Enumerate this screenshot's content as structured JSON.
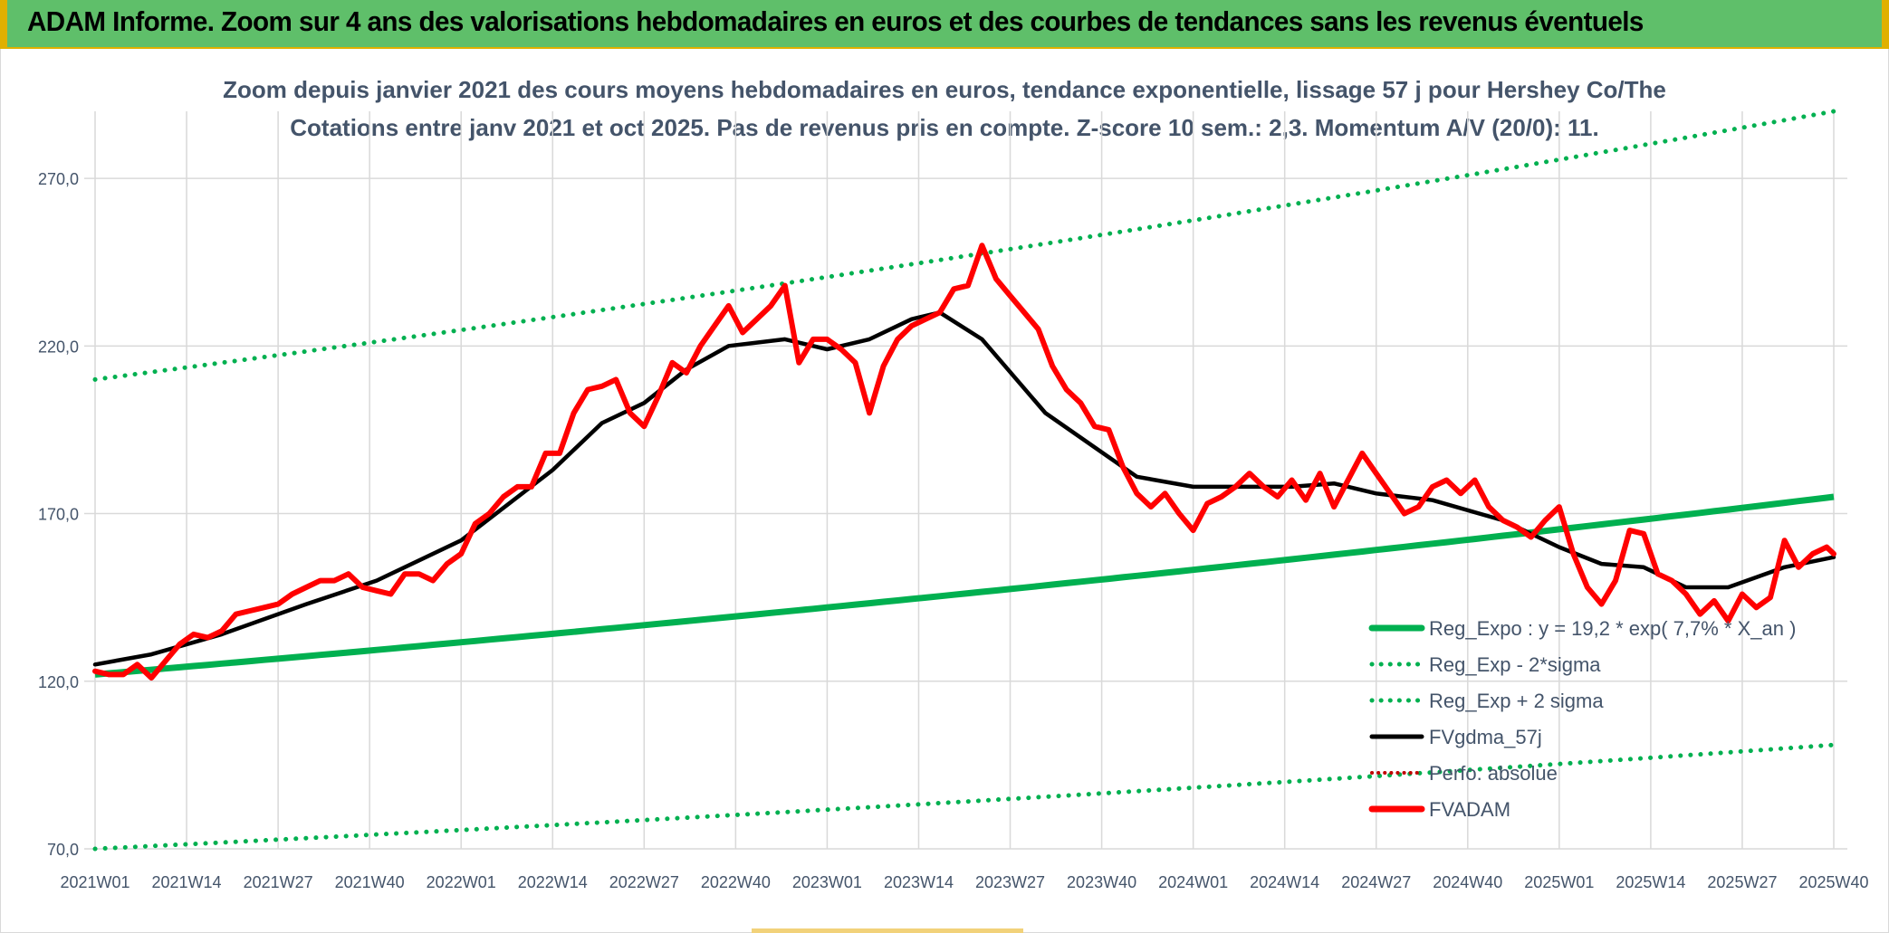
{
  "banner": {
    "title": "ADAM Informe. Zoom sur 4 ans des valorisations hebdomadaires en euros et des courbes de tendances sans les revenus éventuels"
  },
  "colors": {
    "banner_bg": "#5fbf6a",
    "banner_accent": "#e0b000",
    "trend_green": "#00b050",
    "smooth_black": "#000000",
    "price_red": "#ff0000",
    "perfo_red": "#c00000",
    "grid": "#d9d9d9",
    "text": "#44546a"
  },
  "chart_data": {
    "type": "line",
    "title": "Zoom depuis janvier 2021 des cours moyens hebdomadaires en euros, tendance exponentielle, lissage 57 j pour Hershey Co/The",
    "subtitle": "Cotations entre janv 2021 et oct 2025. Pas de revenus pris en compte. Z-score 10 sem.: 2,3. Momentum A/V (20/0): 11.",
    "xlabel": "",
    "ylabel": "",
    "ylim": [
      70,
      290
    ],
    "yticks": [
      70,
      120,
      170,
      220,
      270
    ],
    "ytick_labels": [
      "70,0",
      "120,0",
      "170,0",
      "220,0",
      "270,0"
    ],
    "x_count": 248,
    "xtick_index": [
      0,
      13,
      26,
      39,
      52,
      65,
      78,
      91,
      104,
      117,
      130,
      143,
      156,
      169,
      182,
      195,
      208,
      221,
      234,
      247
    ],
    "xtick_labels": [
      "2021W01",
      "2021W14",
      "2021W27",
      "2021W40",
      "2022W01",
      "2022W14",
      "2022W27",
      "2022W40",
      "2023W01",
      "2023W14",
      "2023W27",
      "2023W40",
      "2024W01",
      "2024W14",
      "2024W27",
      "2024W40",
      "2025W01",
      "2025W14",
      "2025W27",
      "2025W40"
    ],
    "grid": true,
    "legend_position": "bottom-right",
    "trend": {
      "name": "Reg_Expo : y = 19,2 * exp( 7,7% *  X_an )",
      "start": 122,
      "end": 175,
      "lower_start": 70,
      "lower_end": 101,
      "upper_start": 210,
      "upper_end": 290
    },
    "series": [
      {
        "name": "Reg_Expo : y = 19,2 * exp( 7,7% *  X_an )",
        "style": "solid-green"
      },
      {
        "name": "Reg_Exp - 2*sigma",
        "style": "dotted-green"
      },
      {
        "name": "Reg_Exp + 2 sigma",
        "style": "dotted-green"
      },
      {
        "name": "FVgdma_57j",
        "style": "solid-black",
        "points": [
          [
            0,
            125
          ],
          [
            8,
            128
          ],
          [
            18,
            134
          ],
          [
            30,
            143
          ],
          [
            40,
            150
          ],
          [
            52,
            162
          ],
          [
            65,
            183
          ],
          [
            72,
            197
          ],
          [
            78,
            203
          ],
          [
            84,
            213
          ],
          [
            90,
            220
          ],
          [
            98,
            222
          ],
          [
            104,
            219
          ],
          [
            110,
            222
          ],
          [
            116,
            228
          ],
          [
            120,
            230
          ],
          [
            126,
            222
          ],
          [
            135,
            200
          ],
          [
            148,
            181
          ],
          [
            156,
            178
          ],
          [
            170,
            178
          ],
          [
            176,
            179
          ],
          [
            182,
            176
          ],
          [
            190,
            174
          ],
          [
            200,
            168
          ],
          [
            208,
            160
          ],
          [
            214,
            155
          ],
          [
            220,
            154
          ],
          [
            226,
            148
          ],
          [
            232,
            148
          ],
          [
            240,
            154
          ],
          [
            247,
            157
          ]
        ]
      },
      {
        "name": "FVADAM",
        "style": "solid-red",
        "points": [
          [
            0,
            123
          ],
          [
            2,
            122
          ],
          [
            4,
            122
          ],
          [
            6,
            125
          ],
          [
            8,
            121
          ],
          [
            10,
            126
          ],
          [
            12,
            131
          ],
          [
            14,
            134
          ],
          [
            16,
            133
          ],
          [
            18,
            135
          ],
          [
            20,
            140
          ],
          [
            22,
            141
          ],
          [
            24,
            142
          ],
          [
            26,
            143
          ],
          [
            28,
            146
          ],
          [
            30,
            148
          ],
          [
            32,
            150
          ],
          [
            34,
            150
          ],
          [
            36,
            152
          ],
          [
            38,
            148
          ],
          [
            40,
            147
          ],
          [
            42,
            146
          ],
          [
            44,
            152
          ],
          [
            46,
            152
          ],
          [
            48,
            150
          ],
          [
            50,
            155
          ],
          [
            52,
            158
          ],
          [
            54,
            167
          ],
          [
            56,
            170
          ],
          [
            58,
            175
          ],
          [
            60,
            178
          ],
          [
            62,
            178
          ],
          [
            64,
            188
          ],
          [
            66,
            188
          ],
          [
            68,
            200
          ],
          [
            70,
            207
          ],
          [
            72,
            208
          ],
          [
            74,
            210
          ],
          [
            76,
            200
          ],
          [
            78,
            196
          ],
          [
            80,
            205
          ],
          [
            82,
            215
          ],
          [
            84,
            212
          ],
          [
            86,
            220
          ],
          [
            88,
            226
          ],
          [
            90,
            232
          ],
          [
            92,
            224
          ],
          [
            94,
            228
          ],
          [
            96,
            232
          ],
          [
            98,
            238
          ],
          [
            100,
            215
          ],
          [
            102,
            222
          ],
          [
            104,
            222
          ],
          [
            106,
            219
          ],
          [
            108,
            215
          ],
          [
            110,
            200
          ],
          [
            112,
            214
          ],
          [
            114,
            222
          ],
          [
            116,
            226
          ],
          [
            118,
            228
          ],
          [
            120,
            230
          ],
          [
            122,
            237
          ],
          [
            124,
            238
          ],
          [
            126,
            250
          ],
          [
            128,
            240
          ],
          [
            130,
            235
          ],
          [
            132,
            230
          ],
          [
            134,
            225
          ],
          [
            136,
            214
          ],
          [
            138,
            207
          ],
          [
            140,
            203
          ],
          [
            142,
            196
          ],
          [
            144,
            195
          ],
          [
            146,
            184
          ],
          [
            148,
            176
          ],
          [
            150,
            172
          ],
          [
            152,
            176
          ],
          [
            154,
            170
          ],
          [
            156,
            165
          ],
          [
            158,
            173
          ],
          [
            160,
            175
          ],
          [
            162,
            178
          ],
          [
            164,
            182
          ],
          [
            166,
            178
          ],
          [
            168,
            175
          ],
          [
            170,
            180
          ],
          [
            172,
            174
          ],
          [
            174,
            182
          ],
          [
            176,
            172
          ],
          [
            178,
            180
          ],
          [
            180,
            188
          ],
          [
            182,
            182
          ],
          [
            184,
            176
          ],
          [
            186,
            170
          ],
          [
            188,
            172
          ],
          [
            190,
            178
          ],
          [
            192,
            180
          ],
          [
            194,
            176
          ],
          [
            196,
            180
          ],
          [
            198,
            172
          ],
          [
            200,
            168
          ],
          [
            202,
            166
          ],
          [
            204,
            163
          ],
          [
            206,
            168
          ],
          [
            208,
            172
          ],
          [
            210,
            158
          ],
          [
            212,
            148
          ],
          [
            214,
            143
          ],
          [
            216,
            150
          ],
          [
            218,
            165
          ],
          [
            220,
            164
          ],
          [
            222,
            152
          ],
          [
            224,
            150
          ],
          [
            226,
            146
          ],
          [
            228,
            140
          ],
          [
            230,
            144
          ],
          [
            232,
            138
          ],
          [
            234,
            146
          ],
          [
            236,
            142
          ],
          [
            238,
            145
          ],
          [
            240,
            162
          ],
          [
            242,
            154
          ],
          [
            244,
            158
          ],
          [
            246,
            160
          ],
          [
            247,
            158
          ]
        ]
      },
      {
        "name": "Perfo. absolue",
        "style": "dotted-red"
      }
    ]
  }
}
